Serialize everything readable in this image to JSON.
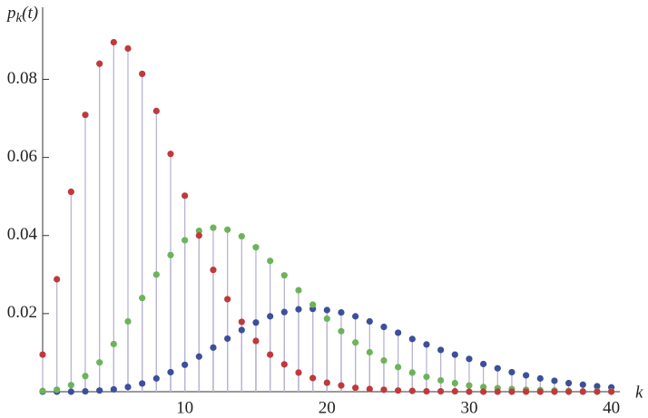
{
  "chart_data": {
    "type": "stem",
    "y_label": {
      "base": "p",
      "sub": "k",
      "rest": "(t)"
    },
    "x_label": "k",
    "x": [
      0,
      1,
      2,
      3,
      4,
      5,
      6,
      7,
      8,
      9,
      10,
      11,
      12,
      13,
      14,
      15,
      16,
      17,
      18,
      19,
      20,
      21,
      22,
      23,
      24,
      25,
      26,
      27,
      28,
      29,
      30,
      31,
      32,
      33,
      34,
      35,
      36,
      37,
      38,
      39,
      40
    ],
    "series": [
      {
        "color": "#3d4f9a",
        "values": [
          0,
          0,
          0,
          0.0001,
          0.0003,
          0.0006,
          0.0012,
          0.0021,
          0.0034,
          0.005,
          0.0069,
          0.009,
          0.0113,
          0.0136,
          0.0158,
          0.0177,
          0.0193,
          0.0204,
          0.0211,
          0.0212,
          0.0209,
          0.0203,
          0.0193,
          0.018,
          0.0166,
          0.0151,
          0.0135,
          0.0121,
          0.0107,
          0.0095,
          0.0084,
          0.0071,
          0.006,
          0.005,
          0.0042,
          0.0034,
          0.0028,
          0.0022,
          0.0018,
          0.0014,
          0.0011
        ]
      },
      {
        "color": "#6db35a",
        "values": [
          0.0002,
          0.0005,
          0.0017,
          0.004,
          0.0075,
          0.0122,
          0.018,
          0.024,
          0.03,
          0.035,
          0.0388,
          0.0412,
          0.042,
          0.0415,
          0.0398,
          0.037,
          0.0335,
          0.0298,
          0.026,
          0.0223,
          0.0187,
          0.0155,
          0.0126,
          0.0101,
          0.008,
          0.0063,
          0.0049,
          0.0038,
          0.0029,
          0.0022,
          0.0016,
          0.0012,
          0.0009,
          0.0007,
          0.0005,
          0.0004,
          0.0003,
          0.0002,
          0.0001,
          0.0001,
          0.0001
        ]
      },
      {
        "color": "#c0393b",
        "values": [
          0.0095,
          0.0288,
          0.0512,
          0.0709,
          0.084,
          0.0895,
          0.0879,
          0.0814,
          0.0719,
          0.0609,
          0.0502,
          0.04,
          0.0312,
          0.0237,
          0.0179,
          0.013,
          0.0095,
          0.007,
          0.0049,
          0.0035,
          0.0023,
          0.0016,
          0.001,
          0.0007,
          0.0005,
          0.0003,
          0.0002,
          0.0001,
          0.0001,
          0.0001,
          0,
          0,
          0,
          0,
          0,
          0,
          0,
          0,
          0,
          0,
          0
        ]
      }
    ],
    "xlim": [
      0,
      40.6
    ],
    "ylim": [
      0,
      0.098
    ],
    "xticks": [
      10,
      20,
      30,
      40
    ],
    "yticks": [
      0.02,
      0.04,
      0.06,
      0.08
    ],
    "stem_color": "#b8b4d4"
  }
}
